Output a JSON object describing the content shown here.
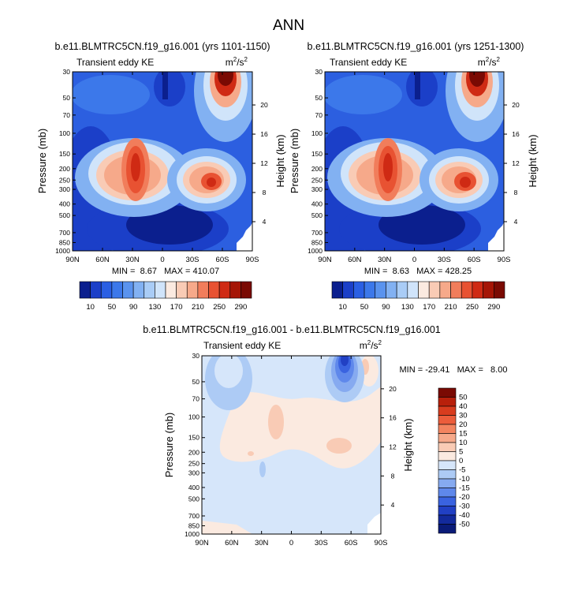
{
  "figure_title": "ANN",
  "chart_data": [
    {
      "type": "heatmap",
      "id": "p1",
      "title": "b.e11.BLMTRC5CN.f19_g16.001 (yrs 1101-1150)",
      "left_label": "Transient eddy KE",
      "units_base": "m",
      "units_sup1": "2",
      "units_mid": "/s",
      "units_sup2": "2",
      "ylabel": "Pressure (mb)",
      "ylabel_right": "Height (km)",
      "x_ticks": [
        "90N",
        "60N",
        "30N",
        "0",
        "30S",
        "60S",
        "90S"
      ],
      "x_values": [
        90,
        60,
        30,
        0,
        -30,
        -60,
        -90
      ],
      "pressure_ticks": [
        30,
        50,
        70,
        100,
        150,
        200,
        250,
        300,
        400,
        500,
        700,
        850,
        1000
      ],
      "height_ticks": [
        4,
        8,
        12,
        16,
        20
      ],
      "stats": "MIN =  8.67   MAX = 410.07",
      "min": 8.67,
      "max": 410.07,
      "colorbar": {
        "levels": [
          "10",
          "50",
          "90",
          "130",
          "170",
          "210",
          "250",
          "290"
        ],
        "colors": [
          "#0b1f8e",
          "#1b3fc8",
          "#2a5fe3",
          "#3c78ea",
          "#5a93ee",
          "#82b1f2",
          "#a9ccf6",
          "#d0e4fa",
          "#fbeae0",
          "#f9cbb5",
          "#f6a98a",
          "#f17d5b",
          "#e85232",
          "#cf2a14",
          "#a51506",
          "#7a0a03"
        ]
      }
    },
    {
      "type": "heatmap",
      "id": "p2",
      "title": "b.e11.BLMTRC5CN.f19_g16.001 (yrs 1251-1300)",
      "left_label": "Transient eddy KE",
      "units_base": "m",
      "units_sup1": "2",
      "units_mid": "/s",
      "units_sup2": "2",
      "ylabel": "Pressure (mb)",
      "ylabel_right": "Height (km)",
      "x_ticks": [
        "90N",
        "60N",
        "30N",
        "0",
        "30S",
        "60S",
        "90S"
      ],
      "x_values": [
        90,
        60,
        30,
        0,
        -30,
        -60,
        -90
      ],
      "pressure_ticks": [
        30,
        50,
        70,
        100,
        150,
        200,
        250,
        300,
        400,
        500,
        700,
        850,
        1000
      ],
      "height_ticks": [
        4,
        8,
        12,
        16,
        20
      ],
      "stats": "MIN =  8.63   MAX = 428.25",
      "min": 8.63,
      "max": 428.25,
      "colorbar": {
        "levels": [
          "10",
          "50",
          "90",
          "130",
          "170",
          "210",
          "250",
          "290"
        ],
        "colors": [
          "#0b1f8e",
          "#1b3fc8",
          "#2a5fe3",
          "#3c78ea",
          "#5a93ee",
          "#82b1f2",
          "#a9ccf6",
          "#d0e4fa",
          "#fbeae0",
          "#f9cbb5",
          "#f6a98a",
          "#f17d5b",
          "#e85232",
          "#cf2a14",
          "#a51506",
          "#7a0a03"
        ]
      }
    },
    {
      "type": "heatmap",
      "id": "p3",
      "title": "b.e11.BLMTRC5CN.f19_g16.001 - b.e11.BLMTRC5CN.f19_g16.001",
      "left_label": "Transient eddy KE",
      "units_base": "m",
      "units_sup1": "2",
      "units_mid": "/s",
      "units_sup2": "2",
      "ylabel": "Pressure (mb)",
      "ylabel_right": "Height (km)",
      "x_ticks": [
        "90N",
        "60N",
        "30N",
        "0",
        "30S",
        "60S",
        "90S"
      ],
      "x_values": [
        90,
        60,
        30,
        0,
        -30,
        -60,
        -90
      ],
      "pressure_ticks": [
        30,
        50,
        70,
        100,
        150,
        200,
        250,
        300,
        400,
        500,
        700,
        850,
        1000
      ],
      "height_ticks": [
        4,
        8,
        12,
        16,
        20
      ],
      "stats": "MIN = -29.41   MAX =   8.00",
      "min": -29.41,
      "max": 8.0,
      "colorbar": {
        "levels": [
          "50",
          "40",
          "30",
          "20",
          "15",
          "10",
          "5",
          "0",
          "-5",
          "-10",
          "-15",
          "-20",
          "-30",
          "-40",
          "-50"
        ],
        "colors": [
          "#7a0a03",
          "#b8200b",
          "#d83c1e",
          "#ec5d3b",
          "#f3845f",
          "#f6a98a",
          "#f9cbb5",
          "#fbeae0",
          "#d6e6fa",
          "#adcbf5",
          "#86aaf0",
          "#5f88eb",
          "#3a63e0",
          "#2140c4",
          "#132a9c",
          "#0a1b78"
        ]
      }
    }
  ]
}
